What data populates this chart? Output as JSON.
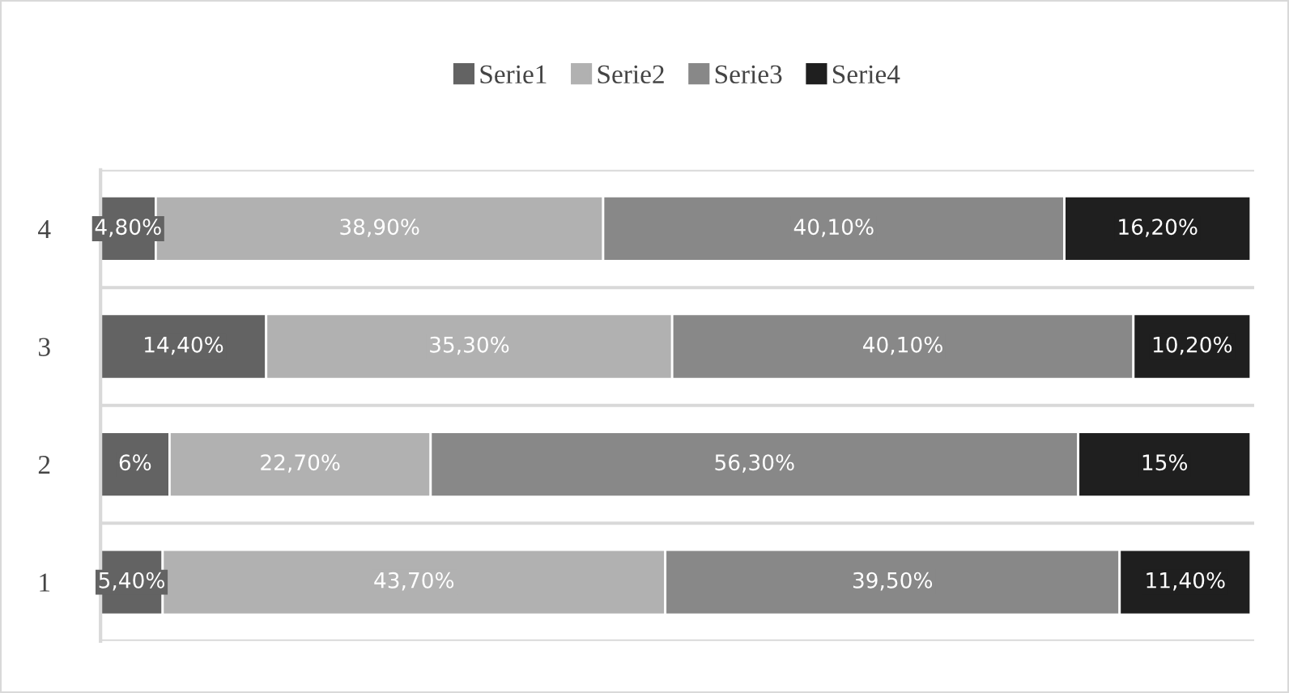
{
  "chart_data": {
    "type": "bar",
    "orientation": "horizontal",
    "stacked": true,
    "categories": [
      "4",
      "3",
      "2",
      "1"
    ],
    "series": [
      {
        "name": "Serie1",
        "color": "#636363",
        "values": [
          4.8,
          14.4,
          6,
          5.4
        ],
        "value_labels": [
          "4,80%",
          "14,40%",
          "6%",
          "5,40%"
        ]
      },
      {
        "name": "Serie2",
        "color": "#b1b1b1",
        "values": [
          38.9,
          35.3,
          22.7,
          43.7
        ],
        "value_labels": [
          "38,90%",
          "35,30%",
          "22,70%",
          "43,70%"
        ]
      },
      {
        "name": "Serie3",
        "color": "#888888",
        "values": [
          40.1,
          40.1,
          56.3,
          39.5
        ],
        "value_labels": [
          "40,10%",
          "40,10%",
          "56,30%",
          "39,50%"
        ]
      },
      {
        "name": "Serie4",
        "color": "#1f1f1f",
        "values": [
          16.2,
          10.2,
          15,
          11.4
        ],
        "value_labels": [
          "16,20%",
          "10,20%",
          "15%",
          "11,40%"
        ]
      }
    ],
    "legend": "top",
    "grid": "y",
    "tick_labels": "y"
  }
}
